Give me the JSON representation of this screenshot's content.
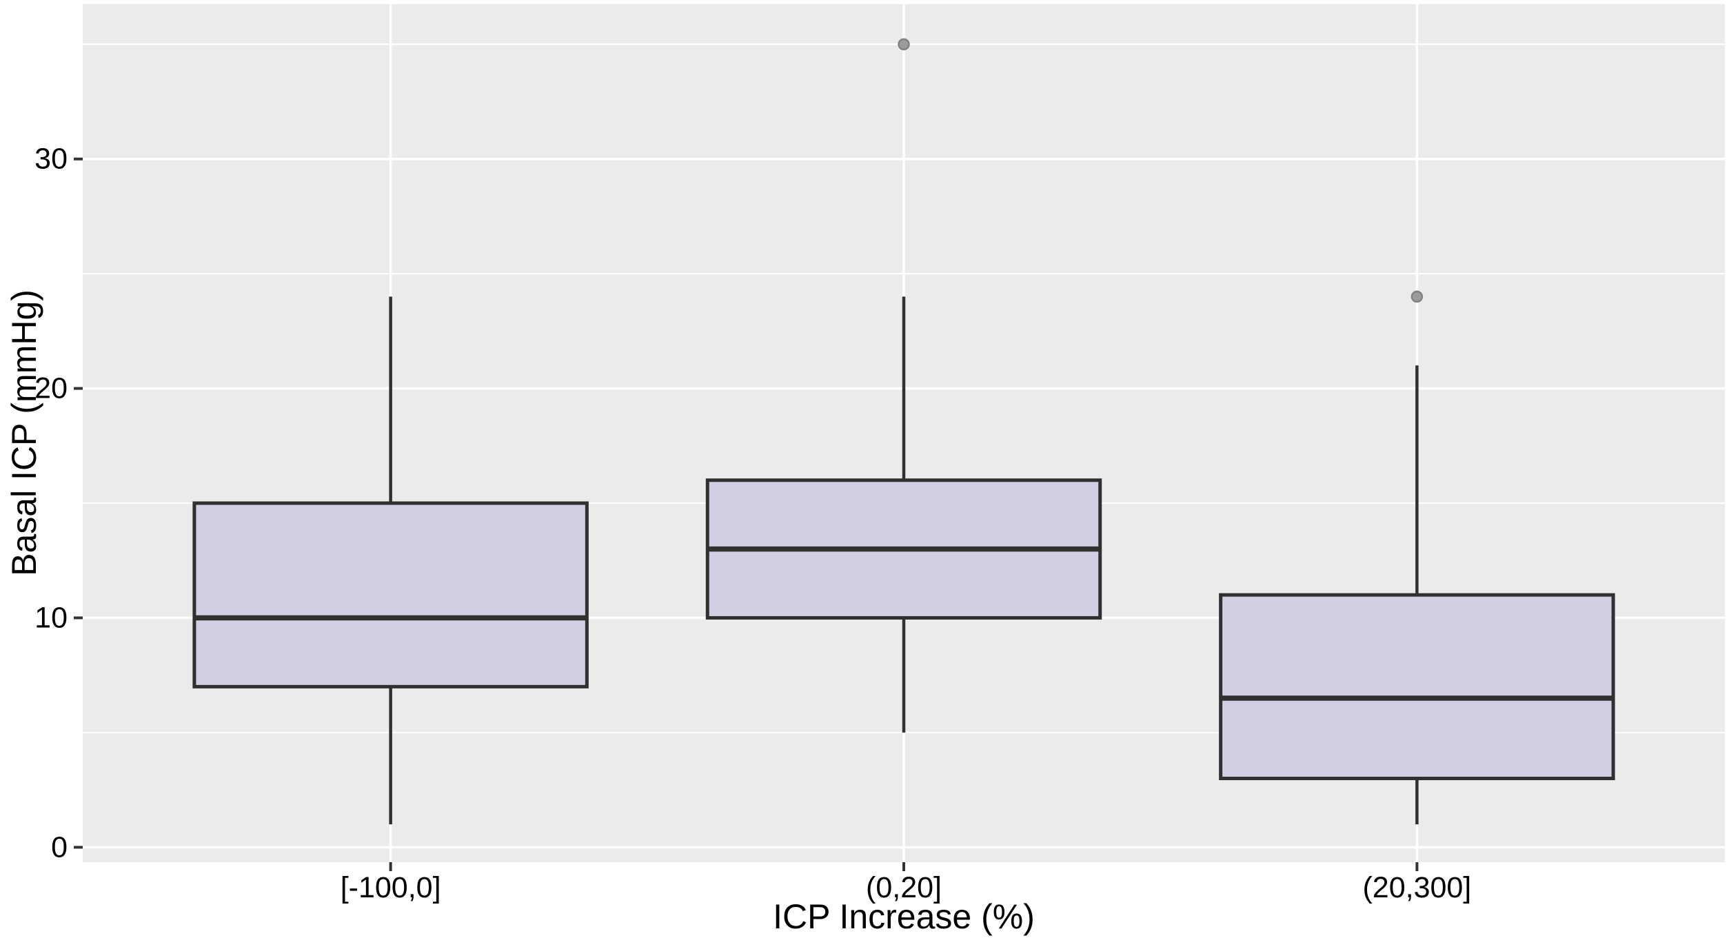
{
  "chart_data": {
    "type": "boxplot",
    "title": "",
    "xlabel": "ICP Increase (%)",
    "ylabel": "Basal ICP (mmHg)",
    "categories": [
      "[-100,0]",
      "(0,20]",
      "(20,300]"
    ],
    "series": [
      {
        "category": "[-100,0]",
        "whisker_low": 1,
        "q1": 7,
        "median": 10,
        "q3": 15,
        "whisker_high": 24,
        "outliers": []
      },
      {
        "category": "(0,20]",
        "whisker_low": 5,
        "q1": 10,
        "median": 13,
        "q3": 16,
        "whisker_high": 24,
        "outliers": [
          35
        ]
      },
      {
        "category": "(20,300]",
        "whisker_low": 1,
        "q1": 3,
        "median": 6.5,
        "q3": 11,
        "whisker_high": 21,
        "outliers": [
          24
        ]
      }
    ],
    "y_axis": {
      "ticks_major": [
        0,
        10,
        20,
        30
      ],
      "ticks_minor": [
        5,
        15,
        25,
        35
      ],
      "ylim": [
        -0.65,
        36.75
      ],
      "grid": "on"
    },
    "x_axis": {
      "positions": [
        1,
        2,
        3
      ],
      "xlim": [
        0.4,
        3.6
      ],
      "box_width_units": 0.765,
      "grid": "on"
    },
    "legend": "none",
    "colors": {
      "panel_background": "#ebebeb",
      "grid": "#ffffff",
      "box_fill": "#d2cfe2",
      "box_stroke": "#303030",
      "outlier_fill": "#9c9c9c",
      "outlier_stroke": "#828282",
      "tick_mark": "#333333",
      "text": "#000000"
    }
  }
}
